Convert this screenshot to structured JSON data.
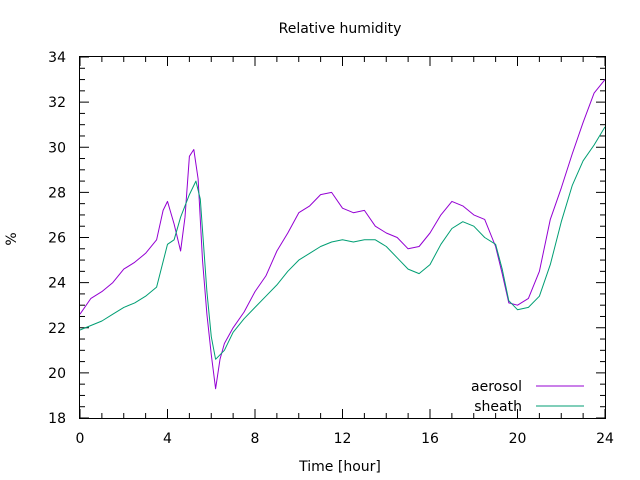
{
  "chart_data": {
    "type": "line",
    "title": "Relative humidity",
    "xlabel": "Time [hour]",
    "ylabel": "%",
    "xlim": [
      0,
      24
    ],
    "ylim": [
      18,
      34
    ],
    "xticks": [
      0,
      4,
      8,
      12,
      16,
      20,
      24
    ],
    "yticks": [
      18,
      20,
      22,
      24,
      26,
      28,
      30,
      32,
      34
    ],
    "grid": false,
    "legend_position": "bottom-right",
    "series": [
      {
        "name": "aerosol",
        "color": "#9400d3",
        "x": [
          0,
          0.5,
          1,
          1.5,
          2,
          2.5,
          3,
          3.5,
          3.8,
          4,
          4.3,
          4.6,
          4.8,
          5,
          5.2,
          5.4,
          5.6,
          5.8,
          6,
          6.2,
          6.4,
          6.6,
          7,
          7.5,
          8,
          8.5,
          9,
          9.5,
          10,
          10.5,
          11,
          11.5,
          12,
          12.5,
          13,
          13.5,
          14,
          14.5,
          15,
          15.5,
          16,
          16.5,
          17,
          17.5,
          18,
          18.5,
          19,
          19.3,
          19.6,
          20,
          20.5,
          21,
          21.5,
          22,
          22.5,
          23,
          23.5,
          24
        ],
        "y": [
          22.6,
          23.3,
          23.6,
          24.0,
          24.6,
          24.9,
          25.3,
          25.9,
          27.2,
          27.6,
          26.6,
          25.4,
          26.9,
          29.6,
          29.9,
          28.6,
          25.0,
          22.6,
          20.8,
          19.3,
          20.6,
          21.3,
          22.0,
          22.7,
          23.6,
          24.3,
          25.4,
          26.2,
          27.1,
          27.4,
          27.9,
          28.0,
          27.3,
          27.1,
          27.2,
          26.5,
          26.2,
          26.0,
          25.5,
          25.6,
          26.2,
          27.0,
          27.6,
          27.4,
          27.0,
          26.8,
          25.6,
          24.4,
          23.1,
          23.0,
          23.3,
          24.5,
          26.8,
          28.2,
          29.7,
          31.1,
          32.4,
          33.0
        ]
      },
      {
        "name": "sheath",
        "color": "#009e73",
        "x": [
          0,
          0.5,
          1,
          1.5,
          2,
          2.5,
          3,
          3.5,
          4,
          4.3,
          4.6,
          5,
          5.3,
          5.5,
          5.8,
          6,
          6.2,
          6.4,
          6.6,
          7,
          7.5,
          8,
          8.5,
          9,
          9.5,
          10,
          10.5,
          11,
          11.5,
          12,
          12.5,
          13,
          13.5,
          14,
          14.5,
          15,
          15.5,
          16,
          16.5,
          17,
          17.5,
          18,
          18.5,
          19,
          19.3,
          19.6,
          20,
          20.5,
          21,
          21.5,
          22,
          22.5,
          23,
          23.5,
          24
        ],
        "y": [
          21.9,
          22.1,
          22.3,
          22.6,
          22.9,
          23.1,
          23.4,
          23.8,
          25.7,
          25.9,
          26.9,
          27.9,
          28.5,
          27.7,
          23.6,
          21.6,
          20.6,
          20.8,
          21.0,
          21.8,
          22.4,
          22.9,
          23.4,
          23.9,
          24.5,
          25.0,
          25.3,
          25.6,
          25.8,
          25.9,
          25.8,
          25.9,
          25.9,
          25.6,
          25.1,
          24.6,
          24.4,
          24.8,
          25.7,
          26.4,
          26.7,
          26.5,
          26.0,
          25.7,
          24.6,
          23.2,
          22.8,
          22.9,
          23.4,
          24.8,
          26.7,
          28.3,
          29.4,
          30.1,
          30.9
        ]
      }
    ]
  }
}
